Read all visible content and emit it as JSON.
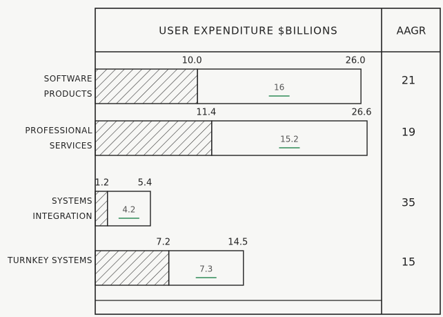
{
  "chart_data": {
    "type": "bar",
    "orientation": "horizontal",
    "stacked": true,
    "title": "USER EXPENDITURE $BILLIONS",
    "categories": [
      "SOFTWARE PRODUCTS",
      "PROFESSIONAL SERVICES",
      "SYSTEMS INTEGRATION",
      "TURNKEY SYSTEMS"
    ],
    "series": [
      {
        "color": "#333333",
        "values": [
          10.0,
          11.4,
          1.2,
          7.2
        ],
        "value_labels": [
          "10.0",
          "11.4",
          "1.2",
          "7.2"
        ]
      },
      {
        "color": "#2e8b57",
        "values": [
          16,
          15.2,
          4.2,
          7.3
        ]
      }
    ],
    "totals": [
      26.0,
      26.6,
      5.4,
      14.5
    ],
    "total_labels": [
      "26.0",
      "26.6",
      "5.4",
      "14.5"
    ],
    "aagr_header": "AAGR",
    "aagr": [
      21,
      19,
      35,
      15
    ]
  }
}
